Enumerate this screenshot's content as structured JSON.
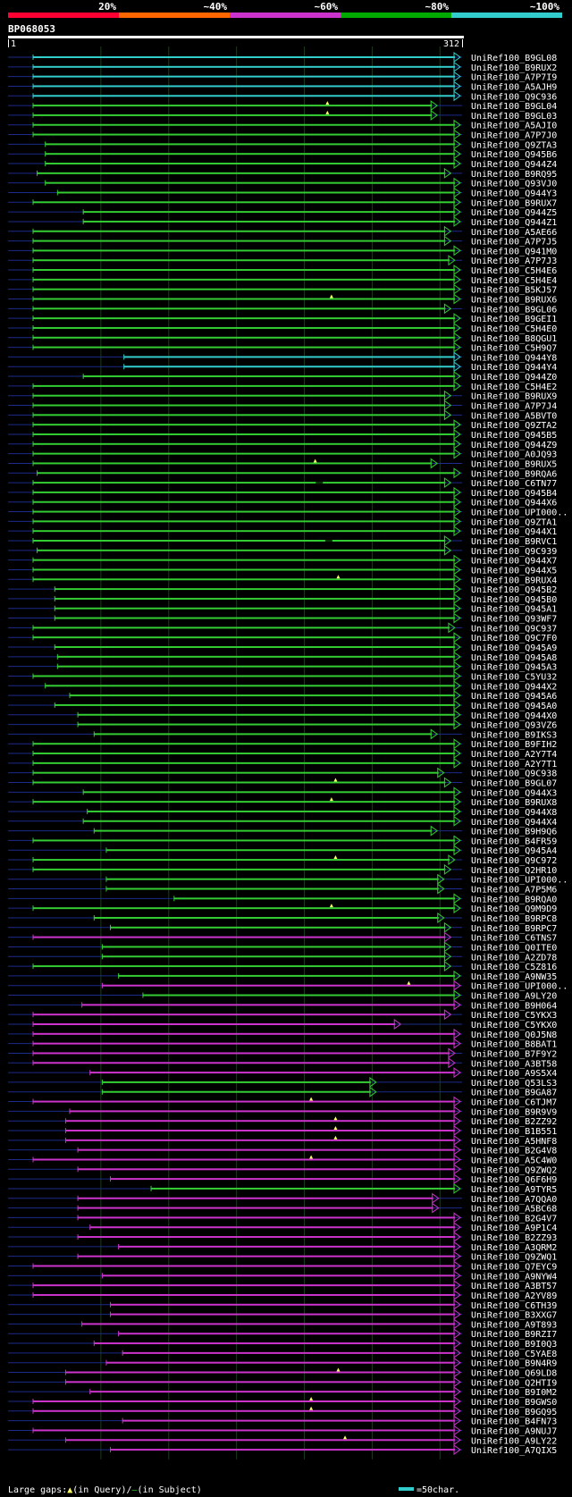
{
  "chart_data": {
    "type": "alignment-overview",
    "query_id": "BP068053",
    "query_start": "1",
    "query_end": "312",
    "legend_pct_labels": [
      "20%",
      "~40%",
      "~60%",
      "~80%",
      "~100%"
    ],
    "colors": {
      "bg": "#000000",
      "axis": "#ffffff",
      "grid": "#1e3a1e",
      "unaligned": "#1d2b8a",
      "band_red": "#ff0033",
      "band_orange": "#ff6600",
      "band_magenta": "#cc33cc",
      "band_green": "#00aa00",
      "band_cyan": "#33cccc",
      "cyan": "#33cccc",
      "green": "#33cc33",
      "magenta": "#cc33cc",
      "gap": "#ffff66"
    },
    "footer": {
      "large_gaps": "Large gaps:",
      "in_query": "(in Query)/",
      "in_subject": "(in Subject)",
      "scale": "=50char."
    },
    "hits": [
      {
        "name": "UniRef100_B9GL08",
        "s": 1,
        "e": 312,
        "c": "cyan"
      },
      {
        "name": "UniRef100_B9RUX2",
        "s": 1,
        "e": 312,
        "c": "cyan"
      },
      {
        "name": "UniRef100_A7P7I9",
        "s": 1,
        "e": 312,
        "c": "cyan"
      },
      {
        "name": "UniRef100_A5AJH9",
        "s": 1,
        "e": 312,
        "c": "cyan"
      },
      {
        "name": "UniRef100_Q9C936",
        "s": 1,
        "e": 312,
        "c": "cyan"
      },
      {
        "name": "UniRef100_B9GL04",
        "s": 1,
        "e": 295,
        "c": "green",
        "gq": [
          218
        ]
      },
      {
        "name": "UniRef100_B9GL03",
        "s": 1,
        "e": 295,
        "c": "green",
        "gq": [
          218
        ]
      },
      {
        "name": "UniRef100_A5AJI0",
        "s": 1,
        "e": 312,
        "c": "green"
      },
      {
        "name": "UniRef100_A7P7J0",
        "s": 1,
        "e": 312,
        "c": "green"
      },
      {
        "name": "UniRef100_Q9ZTA3",
        "s": 10,
        "e": 312,
        "c": "green"
      },
      {
        "name": "UniRef100_Q945B6",
        "s": 10,
        "e": 312,
        "c": "green"
      },
      {
        "name": "UniRef100_Q944Z4",
        "s": 10,
        "e": 312,
        "c": "green"
      },
      {
        "name": "UniRef100_B9RQ95",
        "s": 4,
        "e": 305,
        "c": "green"
      },
      {
        "name": "UniRef100_Q93VJ0",
        "s": 10,
        "e": 312,
        "c": "green"
      },
      {
        "name": "UniRef100_Q944Y3",
        "s": 19,
        "e": 312,
        "c": "green"
      },
      {
        "name": "UniRef100_B9RUX7",
        "s": 1,
        "e": 312,
        "c": "green"
      },
      {
        "name": "UniRef100_Q944Z5",
        "s": 38,
        "e": 312,
        "c": "green"
      },
      {
        "name": "UniRef100_Q944Z1",
        "s": 38,
        "e": 312,
        "c": "green"
      },
      {
        "name": "UniRef100_A5AE66",
        "s": 1,
        "e": 305,
        "c": "green"
      },
      {
        "name": "UniRef100_A7P7J5",
        "s": 1,
        "e": 305,
        "c": "green"
      },
      {
        "name": "UniRef100_Q941M0",
        "s": 1,
        "e": 312,
        "c": "green"
      },
      {
        "name": "UniRef100_A7P7J3",
        "s": 1,
        "e": 308,
        "c": "green"
      },
      {
        "name": "UniRef100_C5H4E6",
        "s": 1,
        "e": 312,
        "c": "green"
      },
      {
        "name": "UniRef100_C5H4E4",
        "s": 1,
        "e": 312,
        "c": "green"
      },
      {
        "name": "UniRef100_B5KJ57",
        "s": 1,
        "e": 312,
        "c": "green"
      },
      {
        "name": "UniRef100_B9RUX6",
        "s": 1,
        "e": 312,
        "c": "green",
        "gq": [
          221
        ]
      },
      {
        "name": "UniRef100_B9GL06",
        "s": 1,
        "e": 305,
        "c": "green"
      },
      {
        "name": "UniRef100_B9GEI1",
        "s": 1,
        "e": 312,
        "c": "green"
      },
      {
        "name": "UniRef100_C5H4E0",
        "s": 1,
        "e": 312,
        "c": "green"
      },
      {
        "name": "UniRef100_B8QGU1",
        "s": 1,
        "e": 312,
        "c": "green"
      },
      {
        "name": "UniRef100_C5H9Q7",
        "s": 1,
        "e": 312,
        "c": "green"
      },
      {
        "name": "UniRef100_Q944Y8",
        "s": 68,
        "e": 312,
        "c": "cyan"
      },
      {
        "name": "UniRef100_Q944Y4",
        "s": 68,
        "e": 312,
        "c": "cyan"
      },
      {
        "name": "UniRef100_Q944Z0",
        "s": 38,
        "e": 312,
        "c": "green"
      },
      {
        "name": "UniRef100_C5H4E2",
        "s": 1,
        "e": 312,
        "c": "green"
      },
      {
        "name": "UniRef100_B9RUX9",
        "s": 1,
        "e": 305,
        "c": "green"
      },
      {
        "name": "UniRef100_A7P7J4",
        "s": 1,
        "e": 305,
        "c": "green"
      },
      {
        "name": "UniRef100_A5BVT0",
        "s": 1,
        "e": 305,
        "c": "green"
      },
      {
        "name": "UniRef100_Q9ZTA2",
        "s": 1,
        "e": 312,
        "c": "green"
      },
      {
        "name": "UniRef100_Q945B5",
        "s": 1,
        "e": 312,
        "c": "green"
      },
      {
        "name": "UniRef100_Q944Z9",
        "s": 1,
        "e": 312,
        "c": "green"
      },
      {
        "name": "UniRef100_A0JQ93",
        "s": 1,
        "e": 312,
        "c": "green"
      },
      {
        "name": "UniRef100_B9RUX5",
        "s": 1,
        "e": 295,
        "c": "green",
        "gq": [
          209
        ]
      },
      {
        "name": "UniRef100_B9RQA6",
        "s": 4,
        "e": 312,
        "c": "green"
      },
      {
        "name": "UniRef100_C6TN77",
        "s": 1,
        "e": 305,
        "c": "green",
        "gs": [
          212
        ]
      },
      {
        "name": "UniRef100_Q945B4",
        "s": 1,
        "e": 312,
        "c": "green"
      },
      {
        "name": "UniRef100_Q944X6",
        "s": 1,
        "e": 312,
        "c": "green"
      },
      {
        "name": "UniRef100_UPI000..",
        "s": 1,
        "e": 312,
        "c": "green"
      },
      {
        "name": "UniRef100_Q9ZTA1",
        "s": 1,
        "e": 312,
        "c": "green"
      },
      {
        "name": "UniRef100_Q944X1",
        "s": 1,
        "e": 312,
        "c": "green"
      },
      {
        "name": "UniRef100_B9RVC1",
        "s": 1,
        "e": 305,
        "c": "green",
        "gs": [
          219
        ]
      },
      {
        "name": "UniRef100_Q9C939",
        "s": 4,
        "e": 305,
        "c": "green"
      },
      {
        "name": "UniRef100_Q944X7",
        "s": 1,
        "e": 312,
        "c": "green"
      },
      {
        "name": "UniRef100_Q944X5",
        "s": 1,
        "e": 312,
        "c": "green"
      },
      {
        "name": "UniRef100_B9RUX4",
        "s": 1,
        "e": 312,
        "c": "green",
        "gq": [
          226
        ]
      },
      {
        "name": "UniRef100_Q945B2",
        "s": 17,
        "e": 312,
        "c": "green"
      },
      {
        "name": "UniRef100_Q945B0",
        "s": 17,
        "e": 312,
        "c": "green"
      },
      {
        "name": "UniRef100_Q945A1",
        "s": 17,
        "e": 312,
        "c": "green"
      },
      {
        "name": "UniRef100_Q93WF7",
        "s": 17,
        "e": 312,
        "c": "green"
      },
      {
        "name": "UniRef100_Q9C937",
        "s": 1,
        "e": 308,
        "c": "green"
      },
      {
        "name": "UniRef100_Q9C7F0",
        "s": 1,
        "e": 312,
        "c": "green"
      },
      {
        "name": "UniRef100_Q945A9",
        "s": 17,
        "e": 312,
        "c": "green"
      },
      {
        "name": "UniRef100_Q945A8",
        "s": 19,
        "e": 312,
        "c": "green"
      },
      {
        "name": "UniRef100_Q945A3",
        "s": 19,
        "e": 312,
        "c": "green"
      },
      {
        "name": "UniRef100_C5YU32",
        "s": 1,
        "e": 312,
        "c": "green"
      },
      {
        "name": "UniRef100_Q944X2",
        "s": 10,
        "e": 312,
        "c": "green"
      },
      {
        "name": "UniRef100_Q945A6",
        "s": 28,
        "e": 312,
        "c": "green"
      },
      {
        "name": "UniRef100_Q945A0",
        "s": 17,
        "e": 312,
        "c": "green"
      },
      {
        "name": "UniRef100_Q944X0",
        "s": 34,
        "e": 312,
        "c": "green"
      },
      {
        "name": "UniRef100_Q93VZ6",
        "s": 34,
        "e": 312,
        "c": "green"
      },
      {
        "name": "UniRef100_B9IKS3",
        "s": 46,
        "e": 295,
        "c": "green"
      },
      {
        "name": "UniRef100_B9FIH2",
        "s": 1,
        "e": 312,
        "c": "green"
      },
      {
        "name": "UniRef100_A2Y7T4",
        "s": 1,
        "e": 312,
        "c": "green"
      },
      {
        "name": "UniRef100_A2Y7T1",
        "s": 1,
        "e": 312,
        "c": "green"
      },
      {
        "name": "UniRef100_Q9C938",
        "s": 1,
        "e": 300,
        "c": "green"
      },
      {
        "name": "UniRef100_B9GL07",
        "s": 1,
        "e": 305,
        "c": "green",
        "gq": [
          224
        ]
      },
      {
        "name": "UniRef100_Q944X3",
        "s": 38,
        "e": 312,
        "c": "green"
      },
      {
        "name": "UniRef100_B9RUX8",
        "s": 1,
        "e": 312,
        "c": "green",
        "gq": [
          221
        ]
      },
      {
        "name": "UniRef100_Q944X8",
        "s": 41,
        "e": 312,
        "c": "green"
      },
      {
        "name": "UniRef100_Q944X4",
        "s": 38,
        "e": 312,
        "c": "green"
      },
      {
        "name": "UniRef100_B9H9Q6",
        "s": 46,
        "e": 295,
        "c": "green"
      },
      {
        "name": "UniRef100_B4FR59",
        "s": 1,
        "e": 312,
        "c": "green"
      },
      {
        "name": "UniRef100_Q945A4",
        "s": 55,
        "e": 312,
        "c": "green"
      },
      {
        "name": "UniRef100_Q9C972",
        "s": 1,
        "e": 308,
        "c": "green",
        "gq": [
          224
        ]
      },
      {
        "name": "UniRef100_Q2HR10",
        "s": 1,
        "e": 305,
        "c": "green"
      },
      {
        "name": "UniRef100_UPI000..",
        "s": 55,
        "e": 300,
        "c": "green"
      },
      {
        "name": "UniRef100_A7P5M6",
        "s": 55,
        "e": 300,
        "c": "green"
      },
      {
        "name": "UniRef100_B9RQA0",
        "s": 105,
        "e": 312,
        "c": "green"
      },
      {
        "name": "UniRef100_Q9M9D9",
        "s": 1,
        "e": 312,
        "c": "green",
        "gq": [
          221
        ]
      },
      {
        "name": "UniRef100_B9RPC8",
        "s": 46,
        "e": 300,
        "c": "green"
      },
      {
        "name": "UniRef100_B9RPC7",
        "s": 58,
        "e": 305,
        "c": "green"
      },
      {
        "name": "UniRef100_C6TNS7",
        "s": 1,
        "e": 305,
        "c": "magenta"
      },
      {
        "name": "UniRef100_Q0ITE0",
        "s": 52,
        "e": 305,
        "c": "green"
      },
      {
        "name": "UniRef100_A2ZD78",
        "s": 52,
        "e": 305,
        "c": "green"
      },
      {
        "name": "UniRef100_C5Z816",
        "s": 1,
        "e": 305,
        "c": "green"
      },
      {
        "name": "UniRef100_A9NW35",
        "s": 64,
        "e": 312,
        "c": "green"
      },
      {
        "name": "UniRef100_UPI000..",
        "s": 52,
        "e": 312,
        "c": "magenta",
        "gq": [
          278
        ]
      },
      {
        "name": "UniRef100_A9LY20",
        "s": 82,
        "e": 312,
        "c": "green"
      },
      {
        "name": "UniRef100_B9H064",
        "s": 37,
        "e": 312,
        "c": "magenta"
      },
      {
        "name": "UniRef100_C5YKX3",
        "s": 1,
        "e": 305,
        "c": "magenta"
      },
      {
        "name": "UniRef100_C5YKX0",
        "s": 1,
        "e": 268,
        "c": "magenta"
      },
      {
        "name": "UniRef100_Q0J5N8",
        "s": 1,
        "e": 312,
        "c": "magenta"
      },
      {
        "name": "UniRef100_B8BAT1",
        "s": 1,
        "e": 312,
        "c": "magenta"
      },
      {
        "name": "UniRef100_B7F9Y2",
        "s": 1,
        "e": 308,
        "c": "magenta"
      },
      {
        "name": "UniRef100_A3BT58",
        "s": 1,
        "e": 308,
        "c": "magenta"
      },
      {
        "name": "UniRef100_A9S5X4",
        "s": 43,
        "e": 312,
        "c": "magenta"
      },
      {
        "name": "UniRef100_Q53LS3",
        "s": 52,
        "e": 250,
        "c": "green"
      },
      {
        "name": "UniRef100_B9GA87",
        "s": 52,
        "e": 250,
        "c": "green"
      },
      {
        "name": "UniRef100_C6TJM7",
        "s": 1,
        "e": 312,
        "c": "magenta",
        "gq": [
          206
        ]
      },
      {
        "name": "UniRef100_B9R9V9",
        "s": 28,
        "e": 312,
        "c": "magenta"
      },
      {
        "name": "UniRef100_B2ZZ92",
        "s": 25,
        "e": 312,
        "c": "magenta",
        "gq": [
          224
        ]
      },
      {
        "name": "UniRef100_B1B551",
        "s": 25,
        "e": 312,
        "c": "magenta",
        "gq": [
          224
        ]
      },
      {
        "name": "UniRef100_A5HNF8",
        "s": 25,
        "e": 312,
        "c": "magenta",
        "gq": [
          224
        ]
      },
      {
        "name": "UniRef100_B2G4V8",
        "s": 34,
        "e": 312,
        "c": "magenta"
      },
      {
        "name": "UniRef100_A5C4W0",
        "s": 1,
        "e": 312,
        "c": "magenta",
        "gq": [
          206
        ]
      },
      {
        "name": "UniRef100_Q9ZWQ2",
        "s": 34,
        "e": 312,
        "c": "magenta"
      },
      {
        "name": "UniRef100_Q6F6H9",
        "s": 58,
        "e": 312,
        "c": "magenta"
      },
      {
        "name": "UniRef100_A9TYR5",
        "s": 88,
        "e": 312,
        "c": "green"
      },
      {
        "name": "UniRef100_A7QQA0",
        "s": 34,
        "e": 296,
        "c": "magenta"
      },
      {
        "name": "UniRef100_A5BC68",
        "s": 34,
        "e": 296,
        "c": "magenta"
      },
      {
        "name": "UniRef100_B2G4V7",
        "s": 34,
        "e": 312,
        "c": "magenta"
      },
      {
        "name": "UniRef100_A9P1C4",
        "s": 43,
        "e": 312,
        "c": "magenta"
      },
      {
        "name": "UniRef100_B2ZZ93",
        "s": 34,
        "e": 312,
        "c": "magenta"
      },
      {
        "name": "UniRef100_A3QRM2",
        "s": 64,
        "e": 312,
        "c": "magenta"
      },
      {
        "name": "UniRef100_Q9ZWQ1",
        "s": 34,
        "e": 312,
        "c": "magenta"
      },
      {
        "name": "UniRef100_Q7EYC9",
        "s": 1,
        "e": 312,
        "c": "magenta"
      },
      {
        "name": "UniRef100_A9NYW4",
        "s": 52,
        "e": 312,
        "c": "magenta"
      },
      {
        "name": "UniRef100_A3BT57",
        "s": 1,
        "e": 312,
        "c": "magenta"
      },
      {
        "name": "UniRef100_A2YV89",
        "s": 1,
        "e": 312,
        "c": "magenta"
      },
      {
        "name": "UniRef100_C6TH39",
        "s": 58,
        "e": 312,
        "c": "magenta"
      },
      {
        "name": "UniRef100_B3XXG7",
        "s": 58,
        "e": 312,
        "c": "magenta"
      },
      {
        "name": "UniRef100_A9T893",
        "s": 37,
        "e": 312,
        "c": "magenta"
      },
      {
        "name": "UniRef100_B9RZI7",
        "s": 64,
        "e": 312,
        "c": "magenta"
      },
      {
        "name": "UniRef100_B9I0Q3",
        "s": 46,
        "e": 312,
        "c": "magenta"
      },
      {
        "name": "UniRef100_C5YAE8",
        "s": 67,
        "e": 312,
        "c": "magenta"
      },
      {
        "name": "UniRef100_B9N4R9",
        "s": 55,
        "e": 312,
        "c": "magenta"
      },
      {
        "name": "UniRef100_Q69LD8",
        "s": 25,
        "e": 312,
        "c": "magenta",
        "gq": [
          226
        ]
      },
      {
        "name": "UniRef100_Q2HTI9",
        "s": 25,
        "e": 312,
        "c": "magenta"
      },
      {
        "name": "UniRef100_B9I0M2",
        "s": 43,
        "e": 312,
        "c": "magenta"
      },
      {
        "name": "UniRef100_B9GWS0",
        "s": 1,
        "e": 312,
        "c": "magenta",
        "gq": [
          206
        ]
      },
      {
        "name": "UniRef100_B9GQ95",
        "s": 1,
        "e": 312,
        "c": "magenta",
        "gq": [
          206
        ]
      },
      {
        "name": "UniRef100_B4FN73",
        "s": 67,
        "e": 312,
        "c": "magenta"
      },
      {
        "name": "UniRef100_A9NUJ7",
        "s": 1,
        "e": 312,
        "c": "magenta"
      },
      {
        "name": "UniRef100_A9LY22",
        "s": 25,
        "e": 312,
        "c": "magenta",
        "gq": [
          231
        ]
      },
      {
        "name": "UniRef100_A7QIX5",
        "s": 58,
        "e": 312,
        "c": "magenta"
      }
    ]
  }
}
